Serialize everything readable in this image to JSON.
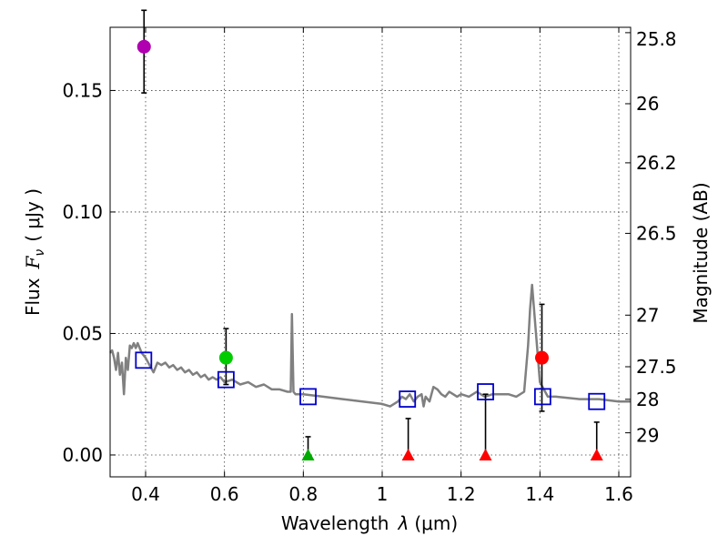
{
  "chart_data": {
    "type": "scatter",
    "xlabel_prefix": "Wavelength",
    "xlabel_symbol": "λ",
    "xlabel_unit": "(μm)",
    "ylabel_prefix": "Flux",
    "ylabel_symbol": "F",
    "ylabel_subscript": "ν",
    "ylabel_unit": "( μJy )",
    "y2label": "Magnitude (AB)",
    "xlim": [
      0.31,
      1.63
    ],
    "ylim": [
      -0.009,
      0.176
    ],
    "xticks": [
      0.4,
      0.6,
      0.8,
      1.0,
      1.2,
      1.4,
      1.6
    ],
    "xtick_labels": [
      "0.4",
      "0.6",
      "0.8",
      "1",
      "1.2",
      "1.4",
      "1.6"
    ],
    "yticks": [
      0.0,
      0.05,
      0.1,
      0.15
    ],
    "ytick_labels": [
      "0.00",
      "0.05",
      "0.10",
      "0.15"
    ],
    "mag_ticks": [
      25.8,
      26,
      26.2,
      26.5,
      27,
      27.5,
      28,
      29
    ],
    "mag_tick_labels": [
      "25.8",
      "26",
      "26.2",
      "26.5",
      "27",
      "27.5",
      "28",
      "29"
    ],
    "grid": true,
    "template_spectrum": {
      "color": "#808080",
      "x": [
        0.31,
        0.315,
        0.32,
        0.325,
        0.33,
        0.335,
        0.34,
        0.345,
        0.35,
        0.355,
        0.36,
        0.365,
        0.37,
        0.375,
        0.38,
        0.39,
        0.4,
        0.41,
        0.42,
        0.43,
        0.44,
        0.45,
        0.46,
        0.47,
        0.48,
        0.49,
        0.5,
        0.51,
        0.52,
        0.53,
        0.54,
        0.55,
        0.56,
        0.57,
        0.58,
        0.59,
        0.6,
        0.62,
        0.64,
        0.66,
        0.68,
        0.7,
        0.72,
        0.74,
        0.76,
        0.768,
        0.771,
        0.775,
        0.78,
        0.8,
        0.85,
        0.9,
        0.95,
        1.0,
        1.02,
        1.04,
        1.05,
        1.06,
        1.07,
        1.08,
        1.09,
        1.1,
        1.105,
        1.11,
        1.12,
        1.13,
        1.14,
        1.15,
        1.16,
        1.17,
        1.18,
        1.19,
        1.2,
        1.22,
        1.24,
        1.26,
        1.28,
        1.3,
        1.32,
        1.34,
        1.36,
        1.37,
        1.375,
        1.38,
        1.39,
        1.4,
        1.42,
        1.44,
        1.5,
        1.55,
        1.6,
        1.63
      ],
      "y": [
        0.042,
        0.043,
        0.04,
        0.035,
        0.042,
        0.033,
        0.038,
        0.025,
        0.04,
        0.035,
        0.045,
        0.044,
        0.046,
        0.044,
        0.046,
        0.042,
        0.04,
        0.037,
        0.034,
        0.038,
        0.037,
        0.038,
        0.036,
        0.037,
        0.035,
        0.036,
        0.034,
        0.035,
        0.033,
        0.034,
        0.032,
        0.033,
        0.031,
        0.032,
        0.031,
        0.032,
        0.03,
        0.031,
        0.029,
        0.03,
        0.028,
        0.029,
        0.027,
        0.027,
        0.026,
        0.026,
        0.058,
        0.026,
        0.025,
        0.025,
        0.024,
        0.023,
        0.022,
        0.021,
        0.02,
        0.022,
        0.024,
        0.023,
        0.025,
        0.022,
        0.024,
        0.025,
        0.02,
        0.024,
        0.022,
        0.028,
        0.027,
        0.025,
        0.024,
        0.026,
        0.025,
        0.024,
        0.025,
        0.024,
        0.026,
        0.024,
        0.025,
        0.025,
        0.025,
        0.024,
        0.026,
        0.045,
        0.06,
        0.07,
        0.05,
        0.03,
        0.024,
        0.024,
        0.023,
        0.023,
        0.022,
        0.022
      ]
    },
    "model_points": {
      "name": "model photometry",
      "marker": "square",
      "color": "#0000cc",
      "x": [
        0.395,
        0.604,
        0.812,
        1.064,
        1.262,
        1.407,
        1.544
      ],
      "y": [
        0.039,
        0.031,
        0.024,
        0.023,
        0.026,
        0.024,
        0.022
      ]
    },
    "detections": [
      {
        "x": 0.396,
        "y": 0.168,
        "err_low": 0.019,
        "err_high": 0.015,
        "color": "#b000b0"
      },
      {
        "x": 0.604,
        "y": 0.04,
        "err_low": 0.011,
        "err_high": 0.012,
        "color": "#00cc00"
      },
      {
        "x": 1.405,
        "y": 0.04,
        "err_low": 0.022,
        "err_high": 0.022,
        "color": "#ff0000"
      }
    ],
    "upper_limits": [
      {
        "x": 0.812,
        "y": 0.0,
        "limit": 0.0075,
        "color": "#00aa00"
      },
      {
        "x": 1.066,
        "y": 0.0,
        "limit": 0.015,
        "color": "#ff0000"
      },
      {
        "x": 1.262,
        "y": 0.0,
        "limit": 0.025,
        "color": "#ff0000"
      },
      {
        "x": 1.544,
        "y": 0.0,
        "limit": 0.0135,
        "color": "#ff0000"
      }
    ]
  }
}
